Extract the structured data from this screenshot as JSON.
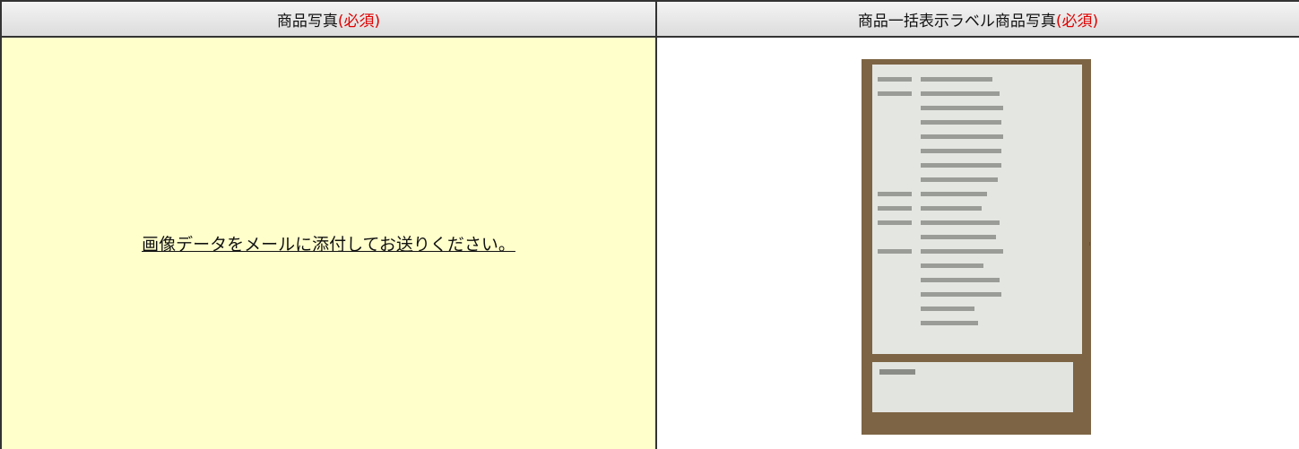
{
  "header": {
    "columns": [
      {
        "label": "商品写真",
        "required": "(必須)"
      },
      {
        "label": "商品一括表示ラベル商品写真",
        "required": "(必須)"
      }
    ]
  },
  "table": {
    "rows": [
      [
        "画像データをメールに添付してお送りください。"
      ]
    ]
  }
}
